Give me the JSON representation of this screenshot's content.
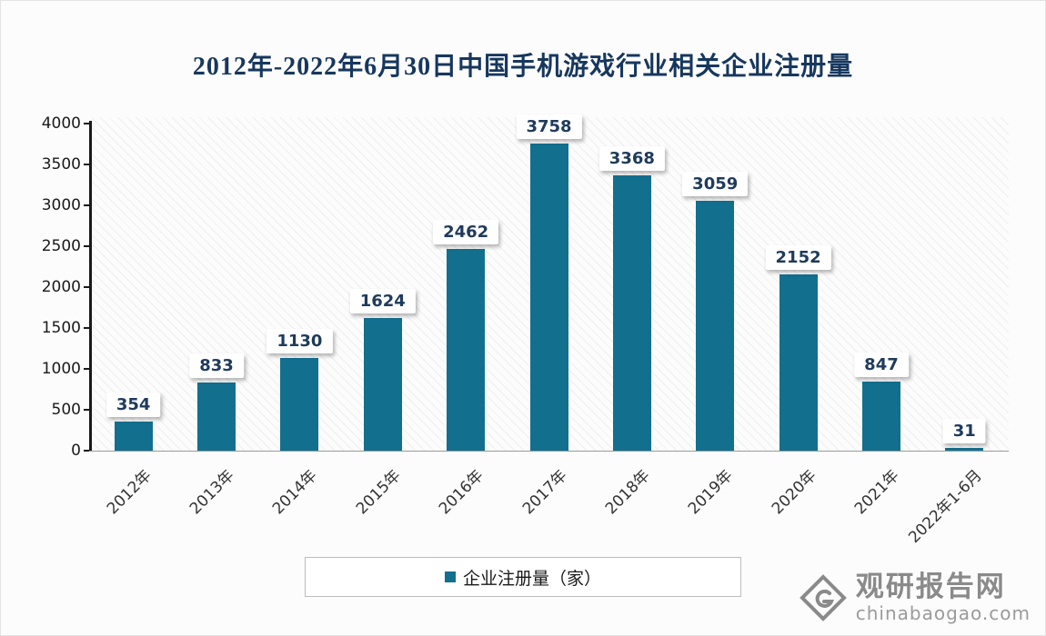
{
  "title": "2012年-2022年6月30日中国手机游戏行业相关企业注册量",
  "chart_data": {
    "type": "bar",
    "title": "2012年-2022年6月30日中国手机游戏行业相关企业注册量",
    "categories": [
      "2012年",
      "2013年",
      "2014年",
      "2015年",
      "2016年",
      "2017年",
      "2018年",
      "2019年",
      "2020年",
      "2021年",
      "2022年1-6月"
    ],
    "values": [
      354,
      833,
      1130,
      1624,
      2462,
      3758,
      3368,
      3059,
      2152,
      847,
      31
    ],
    "xlabel": "",
    "ylabel": "",
    "ylim": [
      0,
      4000
    ],
    "ytick_step": 500,
    "yticks": [
      0,
      500,
      1000,
      1500,
      2000,
      2500,
      3000,
      3500,
      4000
    ],
    "grid": false,
    "legend_position": "bottom",
    "series_name": "企业注册量（家）",
    "bar_color": "#136f8e"
  },
  "legend": {
    "label": "企业注册量（家）"
  },
  "watermark": {
    "name": "观研报告网",
    "domain": "chinabaogao.com"
  },
  "colors": {
    "title": "#17375e",
    "bar": "#136f8e",
    "value_label_text": "#1f3b5c",
    "watermark_gray": "#8a8a8a"
  }
}
